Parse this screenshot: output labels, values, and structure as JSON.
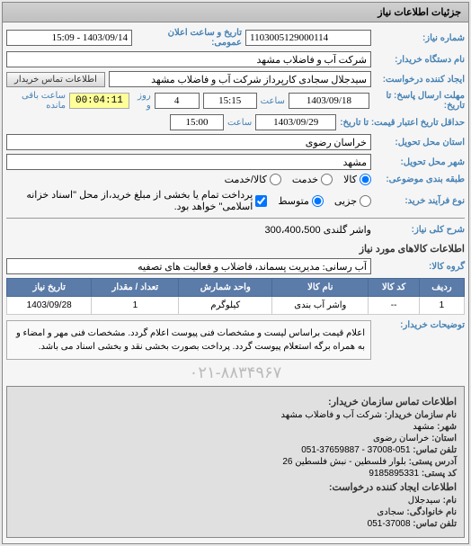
{
  "panel_title": "جزئیات اطلاعات نیاز",
  "fields": {
    "need_number_label": "شماره نیاز:",
    "need_number": "1103005129000114",
    "public_announce_label": "تاریخ و ساعت اعلان عمومی:",
    "public_announce": "1403/09/14 - 15:09",
    "buyer_org_label": "نام دستگاه خریدار:",
    "buyer_org": "شرکت آب و فاضلاب مشهد",
    "creator_label": "ایجاد کننده درخواست:",
    "creator": "سیدجلال سجادی کارپرداز شرکت آب و فاضلاب مشهد",
    "contact_btn": "اطلاعات تماس خریدار",
    "deadline_label": "مهلت ارسال پاسخ: تا تاریخ:",
    "deadline_date": "1403/09/18",
    "time_label": "ساعت",
    "deadline_time": "15:15",
    "days": "4",
    "day_label": "روز و",
    "countdown": "00:04:11",
    "remain_label": "ساعت باقی مانده",
    "validity_label": "حداقل تاریخ اعتبار قیمت: تا تاریخ:",
    "validity_date": "1403/09/29",
    "validity_time": "15:00",
    "province_label": "استان محل تحویل:",
    "province": "خراسان رضوی",
    "city_label": "شهر محل تحویل:",
    "city": "مشهد",
    "category_label": "طبقه بندی موضوعی:",
    "cat_goods": "کالا",
    "cat_service": "خدمت",
    "cat_goods_service": "کالا/خدمت",
    "process_label": "نوع فرآیند خرید:",
    "proc_minor": "جزیی",
    "proc_medium": "متوسط",
    "payment_note": "پرداخت تمام یا بخشی از مبلغ خرید،از محل \"اسناد خزانه اسلامی\" خواهد بود.",
    "general_title_label": "شرح کلی نیاز:",
    "general_title": "واشر گلندی 300،400،500",
    "goods_info_title": "اطلاعات کالاهای مورد نیاز",
    "group_label": "گروه کالا:",
    "group": "آب رسانی: مدیریت پسماند، فاضلاب و فعالیت های تصفیه"
  },
  "table": {
    "headers": [
      "ردیف",
      "کد کالا",
      "نام کالا",
      "واحد شمارش",
      "تعداد / مقدار",
      "تاریخ نیاز"
    ],
    "rows": [
      [
        "1",
        "--",
        "واشر آب بندی",
        "کیلوگرم",
        "1",
        "1403/09/28"
      ]
    ]
  },
  "buyer_notes_label": "توضیحات خریدار:",
  "buyer_notes": "اعلام قیمت براساس لیست و مشخصات فنی پیوست اعلام گردد. مشخصات فنی مهر و امضاء و به همراه برگه استعلام پیوست گردد. پرداخت بصورت بخشی نقد و بخشی اسناد می باشد.",
  "watermark": "۰۲۱-۸۸۳۴۹۶۷",
  "contact": {
    "section1": "اطلاعات تماس سازمان خریدار:",
    "org_name_label": "نام سازمان خریدار:",
    "org_name": "شرکت آب و فاضلاب مشهد",
    "city_label": "شهر:",
    "city": "مشهد",
    "province_label": "استان:",
    "province": "خراسان رضوی",
    "phone_label": "تلفن تماس:",
    "phone": "051-37008 - 37659887-051",
    "address_label": "آدرس پستی:",
    "address": "بلوار فلسطین - نبش فلسطین 26",
    "pobox_label": "کد پستی:",
    "pobox": "9185895331",
    "section2": "اطلاعات ایجاد کننده درخواست:",
    "name_label": "نام:",
    "name": "سیدجلال",
    "family_label": "نام خانوادگی:",
    "family": "سجادی",
    "phone2_label": "تلفن تماس:",
    "phone2": "37008-051"
  }
}
